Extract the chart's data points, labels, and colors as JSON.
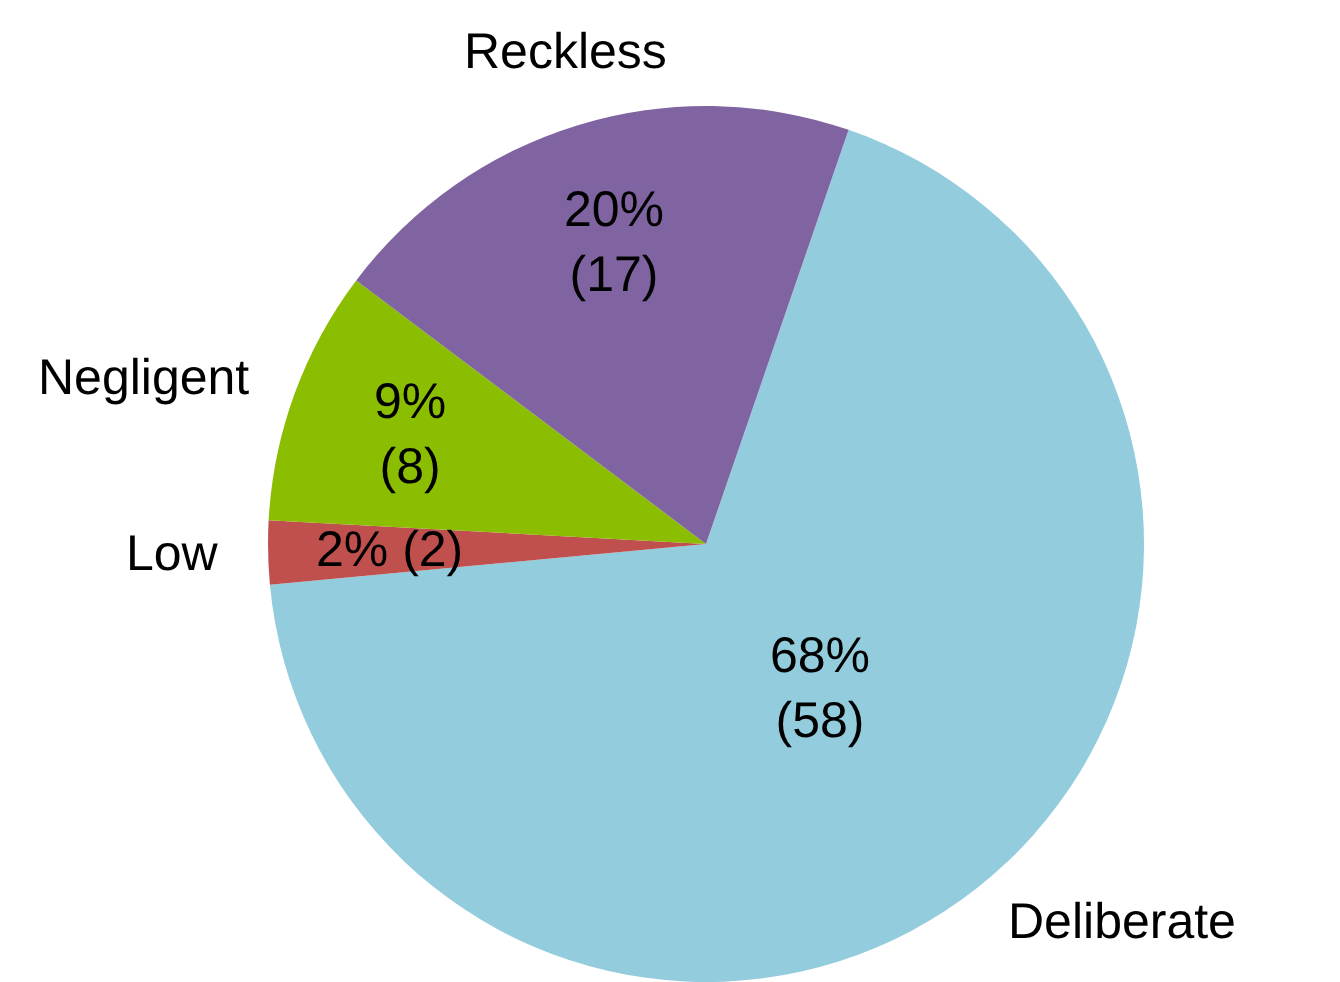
{
  "chart_data": {
    "type": "pie",
    "categories": [
      "Deliberate",
      "Low",
      "Negligent",
      "Reckless"
    ],
    "values": [
      58,
      2,
      8,
      17
    ],
    "colors": [
      "#93cddd",
      "#c0504d",
      "#8bbd00",
      "#8064a2"
    ],
    "value_labels": [
      "68%\n(58)",
      "2% (2)",
      "9%\n(8)",
      "20%\n(17)"
    ]
  }
}
